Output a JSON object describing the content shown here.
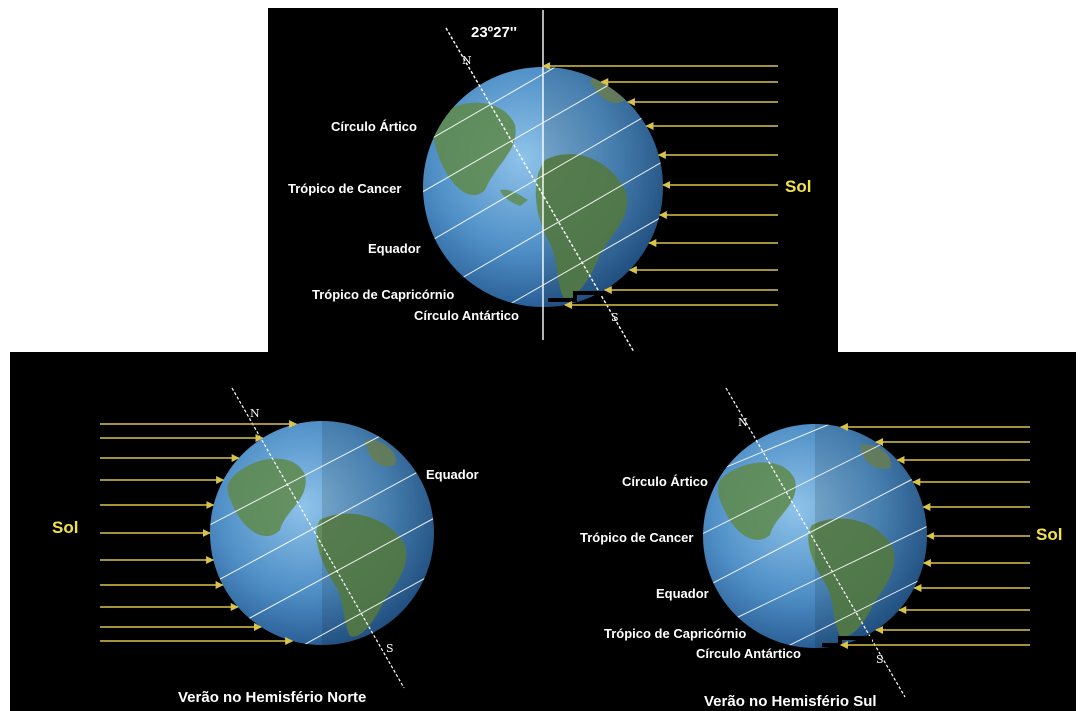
{
  "top_panel": {
    "angle_label": "23º27''",
    "pole_north": "N",
    "pole_south": "S",
    "sun_label": "Sol",
    "circles": {
      "arctic": "Círculo Ártico",
      "cancer": "Trópico de Cancer",
      "equator": "Equador",
      "capricorn": "Trópico de Capricórnio",
      "antarctic": "Círculo Antártico"
    }
  },
  "left_panel": {
    "pole_north": "N",
    "pole_south": "S",
    "sun_label": "Sol",
    "equator": "Equador",
    "caption": "Verão no Hemisfério Norte"
  },
  "right_panel": {
    "pole_north": "N",
    "pole_south": "S",
    "sun_label": "Sol",
    "circles": {
      "arctic": "Círculo Ártico",
      "cancer": "Trópico de Cancer",
      "equator": "Equador",
      "capricorn": "Trópico de Capricórnio",
      "antarctic": "Círculo Antártico"
    },
    "caption": "Verão no Hemisfério Sul"
  },
  "colors": {
    "background": "#000000",
    "sun_rays": "#d9c34a",
    "sun_label": "#f2e24a",
    "ocean": "#4f8fc6",
    "land": "#5f8a4a"
  }
}
